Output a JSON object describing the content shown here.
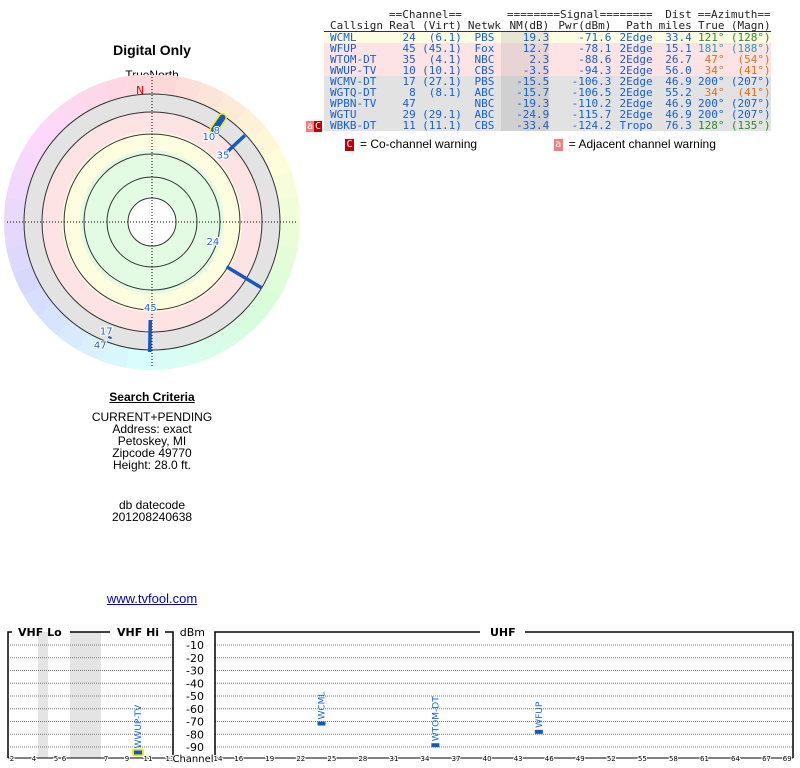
{
  "polar": {
    "title": "Digital Only",
    "north_label": "TrueNorth",
    "n_marker": "N",
    "markers": [
      {
        "label": "24",
        "azimuth": 121,
        "highlight": false
      },
      {
        "label": "45",
        "azimuth": 181,
        "highlight": false
      },
      {
        "label": "35",
        "azimuth": 47,
        "highlight": false
      },
      {
        "label": "8",
        "azimuth": 34,
        "highlight": true
      },
      {
        "label": "10",
        "azimuth": 34,
        "highlight": true
      },
      {
        "label": "17",
        "azimuth": 200,
        "highlight": false
      },
      {
        "label": "47",
        "azimuth": 200,
        "highlight": false
      }
    ]
  },
  "criteria": {
    "heading": "Search Criteria",
    "lines": [
      "CURRENT+PENDING",
      "Address: exact",
      "Petoskey, MI",
      "Zipcode 49770",
      "Height: 28.0 ft."
    ],
    "db_label": "db datecode",
    "db_value": "201208240638"
  },
  "link": "www.tvfool.com",
  "table": {
    "group_headers": {
      "channel": "==Channel==",
      "signal": "========Signal========",
      "dist": "Dist",
      "azimuth": "==Azimuth=="
    },
    "columns": [
      "Callsign",
      "Real",
      "(Virt)",
      "Netwk",
      "NM(dB)",
      "Pwr(dBm)",
      "Path",
      "miles",
      "True",
      "(Magn)"
    ],
    "rows": [
      {
        "callsign": "WCML",
        "real": "24",
        "virt": "(6.1)",
        "netwk": "PBS",
        "nm": "19.3",
        "pwr": "-71.6",
        "path": "2Edge",
        "dist": "33.4",
        "true": "121°",
        "magn": "(128°)",
        "bg": "y",
        "az": "green"
      },
      {
        "callsign": "WFUP",
        "real": "45",
        "virt": "(45.1)",
        "netwk": "Fox",
        "nm": "12.7",
        "pwr": "-78.1",
        "path": "2Edge",
        "dist": "15.1",
        "true": "181°",
        "magn": "(188°)",
        "bg": "p",
        "az": "teal"
      },
      {
        "callsign": "WTOM-DT",
        "real": "35",
        "virt": "(4.1)",
        "netwk": "NBC",
        "nm": "2.3",
        "pwr": "-88.6",
        "path": "2Edge",
        "dist": "26.7",
        "true": "47°",
        "magn": "(54°)",
        "bg": "p",
        "az": "orange"
      },
      {
        "callsign": "WWUP-TV",
        "real": "10",
        "virt": "(10.1)",
        "netwk": "CBS",
        "nm": "-3.5",
        "pwr": "-94.3",
        "path": "2Edge",
        "dist": "56.0",
        "true": "34°",
        "magn": "(41°)",
        "bg": "p",
        "az": "orange"
      },
      {
        "callsign": "WCMV-DT",
        "real": "17",
        "virt": "(27.1)",
        "netwk": "PBS",
        "nm": "-15.5",
        "pwr": "-106.3",
        "path": "2Edge",
        "dist": "46.9",
        "true": "200°",
        "magn": "(207°)",
        "bg": "g",
        "az": "blue"
      },
      {
        "callsign": "WGTQ-DT",
        "real": "8",
        "virt": "(8.1)",
        "netwk": "ABC",
        "nm": "-15.7",
        "pwr": "-106.5",
        "path": "2Edge",
        "dist": "55.2",
        "true": "34°",
        "magn": "(41°)",
        "bg": "g",
        "az": "orange"
      },
      {
        "callsign": "WPBN-TV",
        "real": "47",
        "virt": "",
        "netwk": "NBC",
        "nm": "-19.3",
        "pwr": "-110.2",
        "path": "2Edge",
        "dist": "46.9",
        "true": "200°",
        "magn": "(207°)",
        "bg": "g",
        "az": "blue"
      },
      {
        "callsign": "WGTU",
        "real": "29",
        "virt": "(29.1)",
        "netwk": "ABC",
        "nm": "-24.9",
        "pwr": "-115.7",
        "path": "2Edge",
        "dist": "46.9",
        "true": "200°",
        "magn": "(207°)",
        "bg": "g",
        "az": "blue"
      },
      {
        "callsign": "WBKB-DT",
        "real": "11",
        "virt": "(11.1)",
        "netwk": "CBS",
        "nm": "-33.4",
        "pwr": "-124.2",
        "path": "Tropo",
        "dist": "76.3",
        "true": "128°",
        "magn": "(135°)",
        "bg": "g",
        "az": "green",
        "warn": [
          "a",
          "C"
        ]
      }
    ]
  },
  "legend": {
    "co_badge": "C",
    "co_text": "= Co-channel warning",
    "adj_badge": "a",
    "adj_text": "= Adjacent channel warning",
    "co_color": "#c00000",
    "adj_color": "#f08080"
  },
  "chart_data": {
    "type": "bar",
    "title": "",
    "ylabel": "dBm",
    "xlabel": "Channel",
    "ylim": [
      -100,
      0
    ],
    "bands": [
      "VHF Lo",
      "VHF Hi",
      "UHF"
    ],
    "yticks": [
      -10,
      -20,
      -30,
      -40,
      -50,
      -60,
      -70,
      -80,
      -90
    ],
    "vhf_ticks": [
      "2",
      "4",
      "5",
      "6",
      "7",
      "9",
      "11",
      "13"
    ],
    "uhf_ticks": [
      "14",
      "16",
      "19",
      "22",
      "25",
      "28",
      "31",
      "34",
      "37",
      "40",
      "43",
      "46",
      "49",
      "52",
      "55",
      "58",
      "61",
      "64",
      "67",
      "69"
    ],
    "stations": [
      {
        "name": "WWUP-TV",
        "channel": 10,
        "dbm": -94.3,
        "highlight": true
      },
      {
        "name": "WCML",
        "channel": 24,
        "dbm": -71.6,
        "highlight": false
      },
      {
        "name": "WTOM-DT",
        "channel": 35,
        "dbm": -88.6,
        "highlight": false
      },
      {
        "name": "WFUP",
        "channel": 45,
        "dbm": -78.1,
        "highlight": false
      }
    ]
  }
}
